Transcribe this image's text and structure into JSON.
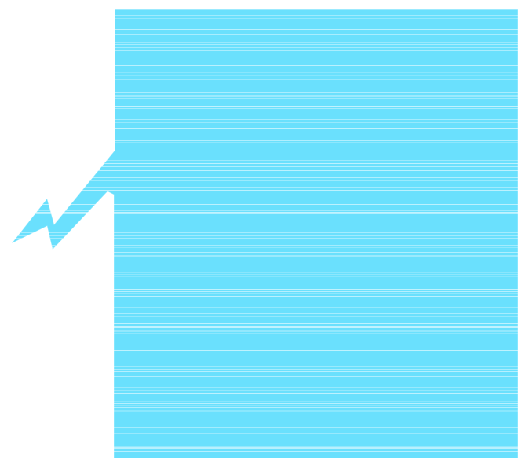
{
  "graphic": {
    "shape": "speech-bubble-with-lightning-tail",
    "fill_color": "#6ae0fd",
    "stripe_color": "#ffffff",
    "background_color": "#ffffff"
  }
}
